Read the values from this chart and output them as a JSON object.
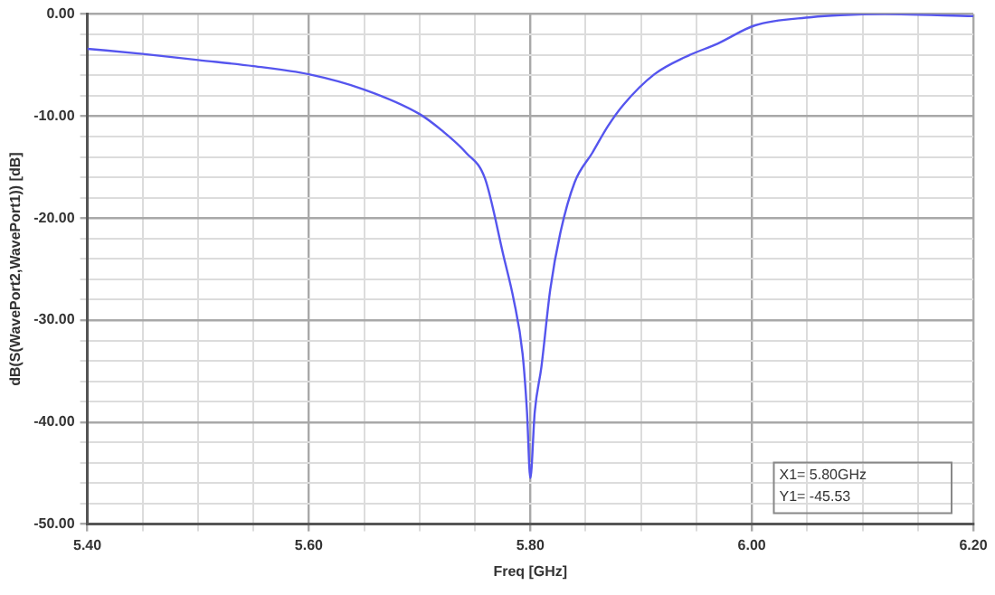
{
  "chart_data": {
    "type": "line",
    "xlabel": "Freq [GHz]",
    "ylabel": "dB(S(WavePort2,WavePort1)) [dB]",
    "x": [
      5.4,
      5.45,
      5.5,
      5.55,
      5.6,
      5.65,
      5.7,
      5.72,
      5.742,
      5.759,
      5.776,
      5.785,
      5.793,
      5.797,
      5.8,
      5.804,
      5.81,
      5.818,
      5.827,
      5.84,
      5.856,
      5.87,
      5.884,
      5.912,
      5.94,
      5.969,
      6.003,
      6.054,
      6.08,
      6.12,
      6.2
    ],
    "series": [
      {
        "color": "#5555ee",
        "values": [
          -3.4,
          -3.9,
          -4.5,
          -5.1,
          -5.9,
          -7.4,
          -9.8,
          -11.4,
          -13.6,
          -16.1,
          -23.8,
          -28,
          -33.3,
          -39,
          -45.5,
          -39,
          -34.6,
          -27,
          -21.5,
          -16.5,
          -13.6,
          -11,
          -8.9,
          -5.9,
          -4.2,
          -2.9,
          -1.1,
          -0.3,
          -0.1,
          0,
          -0.2
        ]
      }
    ],
    "xlim": [
      5.4,
      6.2
    ],
    "xticks": [
      {
        "value": 5.4,
        "label": "5.40"
      },
      {
        "value": 5.45,
        "label": null
      },
      {
        "value": 5.5,
        "label": null
      },
      {
        "value": 5.55,
        "label": null
      },
      {
        "value": 5.6,
        "label": "5.60"
      },
      {
        "value": 5.65,
        "label": null
      },
      {
        "value": 5.7,
        "label": null
      },
      {
        "value": 5.75,
        "label": null
      },
      {
        "value": 5.8,
        "label": "5.80"
      },
      {
        "value": 5.85,
        "label": null
      },
      {
        "value": 5.9,
        "label": null
      },
      {
        "value": 5.95,
        "label": null
      },
      {
        "value": 6.0,
        "label": "6.00"
      },
      {
        "value": 6.05,
        "label": null
      },
      {
        "value": 6.1,
        "label": null
      },
      {
        "value": 6.15,
        "label": null
      },
      {
        "value": 6.2,
        "label": "6.20"
      }
    ],
    "ylim": [
      -50,
      0
    ],
    "yticks": [
      {
        "value": -50,
        "label": "-50.00"
      },
      {
        "value": -48,
        "label": null
      },
      {
        "value": -46,
        "label": null
      },
      {
        "value": -44,
        "label": null
      },
      {
        "value": -42,
        "label": null
      },
      {
        "value": -40,
        "label": "-40.00"
      },
      {
        "value": -38,
        "label": null
      },
      {
        "value": -36,
        "label": null
      },
      {
        "value": -34,
        "label": null
      },
      {
        "value": -32,
        "label": null
      },
      {
        "value": -30,
        "label": "-30.00"
      },
      {
        "value": -28,
        "label": null
      },
      {
        "value": -26,
        "label": null
      },
      {
        "value": -24,
        "label": null
      },
      {
        "value": -22,
        "label": null
      },
      {
        "value": -20,
        "label": "-20.00"
      },
      {
        "value": -18,
        "label": null
      },
      {
        "value": -16,
        "label": null
      },
      {
        "value": -14,
        "label": null
      },
      {
        "value": -12,
        "label": null
      },
      {
        "value": -10,
        "label": "-10.00"
      },
      {
        "value": -8,
        "label": null
      },
      {
        "value": -6,
        "label": null
      },
      {
        "value": -4,
        "label": null
      },
      {
        "value": -2,
        "label": null
      },
      {
        "value": 0,
        "label": "0.00"
      }
    ],
    "grid": true,
    "legend": false,
    "marker": "none",
    "line_style": "solid",
    "annotations": [
      "X1= 5.80GHz\nY1= -45.53"
    ]
  }
}
